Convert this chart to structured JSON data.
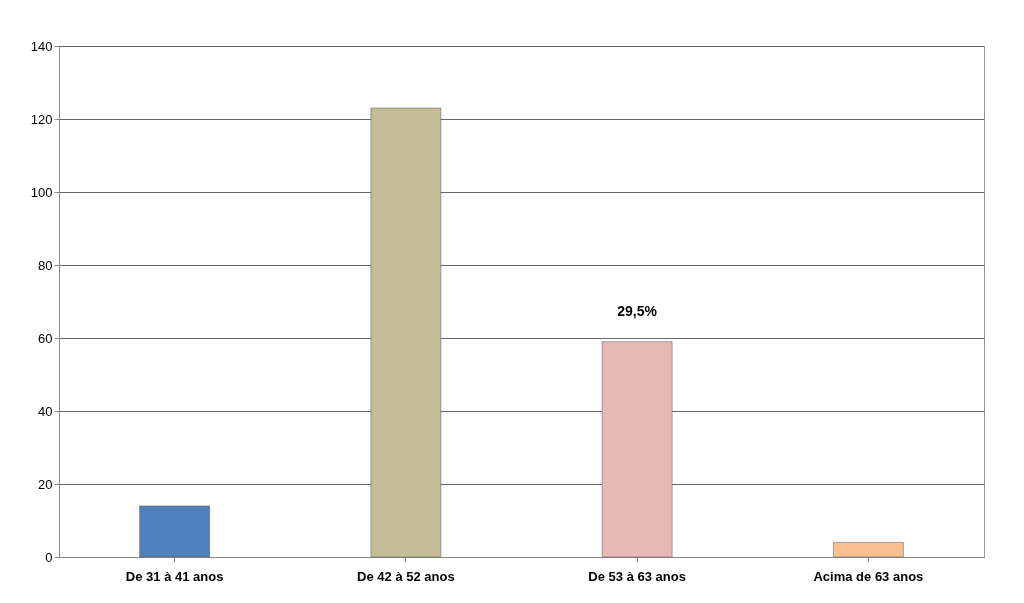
{
  "chart_data": {
    "type": "bar",
    "categories": [
      "De 31 à 41 anos",
      "De  42 à 52 anos",
      "De 53 à 63 anos",
      "Acima de 63 anos"
    ],
    "values": [
      14,
      123,
      59,
      4
    ],
    "colors": [
      "#4f81bd",
      "#c4bd97",
      "#e6b9b8",
      "#fac090"
    ],
    "annotations": [
      {
        "text": "29,5%",
        "x": "De 53 à 63 anos",
        "y": 59
      }
    ],
    "ylim": [
      0,
      140
    ],
    "yticks": [
      0,
      20,
      40,
      60,
      80,
      100,
      120,
      140
    ],
    "grid": "y",
    "legend": false
  }
}
